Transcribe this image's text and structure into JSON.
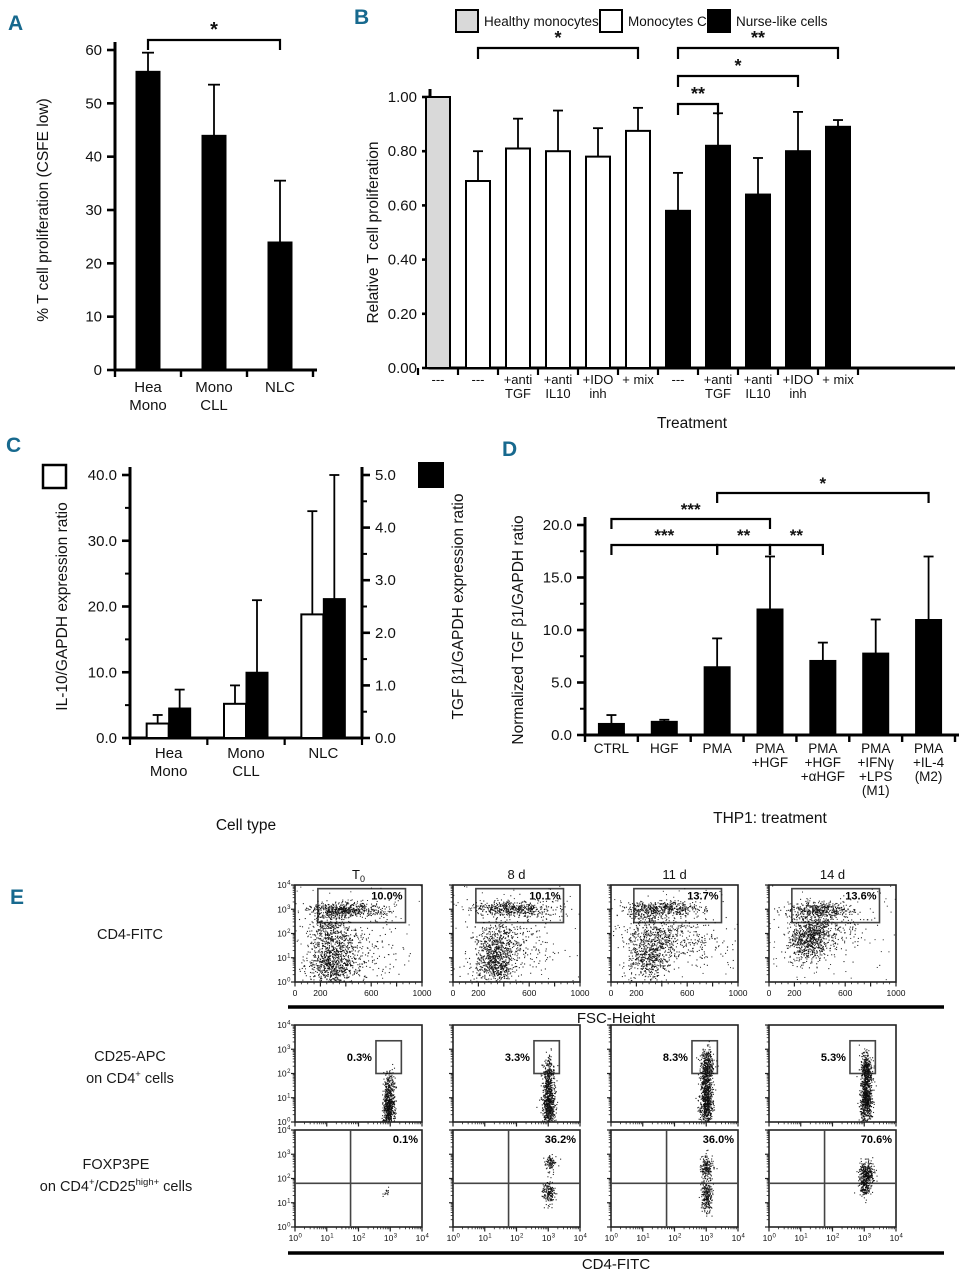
{
  "panels": {
    "A": "A",
    "B": "B",
    "C": "C",
    "D": "D",
    "E": "E"
  },
  "accent_color": "#17698e",
  "chart_data": [
    {
      "id": "A",
      "type": "bar",
      "ylabel": "% T cell proliferation (CSFE low)",
      "ylim": [
        0,
        60
      ],
      "ytick_step": 10,
      "ytick_decimals": 0,
      "categories": [
        "Hea\nMono",
        "Mono\nCLL",
        "NLC"
      ],
      "values": [
        56,
        44,
        24
      ],
      "errors_up": [
        3.5,
        9.5,
        11.5
      ],
      "bar_color": "#000000",
      "significance": [
        {
          "from": 0,
          "to": 2,
          "label": "*",
          "level": 1
        }
      ]
    },
    {
      "id": "B",
      "type": "bar",
      "ylabel": "Relative T cell proliferation",
      "xlabel": "Treatment",
      "ylim": [
        0,
        1.0
      ],
      "ytick_step": 0.2,
      "ytick_minor": 0.1,
      "ytick_decimals": 2,
      "legend": [
        {
          "label": "Healthy monocytes",
          "fill": "#d9d9d9"
        },
        {
          "label": "Monocytes CLL",
          "fill": "#ffffff"
        },
        {
          "label": "Nurse-like cells",
          "fill": "#000000"
        }
      ],
      "bars": [
        {
          "label": "---",
          "value": 1.0,
          "error": 0,
          "fill": "#d9d9d9"
        },
        {
          "label": "---",
          "value": 0.69,
          "error": 0.11,
          "fill": "#ffffff"
        },
        {
          "label": "+anti\nTGF",
          "value": 0.81,
          "error": 0.11,
          "fill": "#ffffff"
        },
        {
          "label": "+anti\nIL10",
          "value": 0.8,
          "error": 0.15,
          "fill": "#ffffff"
        },
        {
          "label": "+IDO\ninh",
          "value": 0.78,
          "error": 0.105,
          "fill": "#ffffff"
        },
        {
          "label": "+ mix",
          "value": 0.875,
          "error": 0.085,
          "fill": "#ffffff"
        },
        {
          "label": "---",
          "value": 0.58,
          "error": 0.14,
          "fill": "#000000"
        },
        {
          "label": "+anti\nTGF",
          "value": 0.82,
          "error": 0.12,
          "fill": "#000000"
        },
        {
          "label": "+anti\nIL10",
          "value": 0.64,
          "error": 0.135,
          "fill": "#000000"
        },
        {
          "label": "+IDO\ninh",
          "value": 0.8,
          "error": 0.145,
          "fill": "#000000"
        },
        {
          "label": "+ mix",
          "value": 0.89,
          "error": 0.025,
          "fill": "#000000"
        }
      ],
      "significance": [
        {
          "from": 1,
          "to": 5,
          "label": "*",
          "level": 3
        },
        {
          "from": 6,
          "to": 10,
          "label": "**",
          "level": 3
        },
        {
          "from": 6,
          "to": 9,
          "label": "*",
          "level": 2
        },
        {
          "from": 6,
          "to": 7,
          "label": "**",
          "level": 1
        }
      ]
    },
    {
      "id": "C",
      "type": "bar-dual-axis",
      "left_ylabel": "IL-10/GAPDH expression ratio",
      "right_ylabel": "TGF β1/GAPDH expression ratio",
      "xlabel": "Cell type",
      "left_ylim": [
        0,
        40
      ],
      "left_ytick_step": 10,
      "left_ytick_minor": 5,
      "left_decimals": 1,
      "right_ylim": [
        0,
        5
      ],
      "right_ytick_step": 1,
      "right_ytick_minor": 0.5,
      "right_decimals": 1,
      "categories": [
        "Hea\nMono",
        "Mono\nCLL",
        "NLC"
      ],
      "series": [
        {
          "name": "IL-10",
          "axis": "left",
          "fill": "#ffffff",
          "values": [
            2.2,
            5.2,
            18.8
          ],
          "errors_up": [
            1.3,
            2.8,
            15.7
          ]
        },
        {
          "name": "TGF β1",
          "axis": "right",
          "fill": "#000000",
          "values": [
            0.57,
            1.25,
            2.65
          ],
          "errors_up": [
            0.35,
            1.37,
            2.35
          ]
        }
      ]
    },
    {
      "id": "D",
      "type": "bar",
      "ylabel": "Normalized TGF β1/GAPDH ratio",
      "xlabel": "THP1: treatment",
      "ylim": [
        0,
        20
      ],
      "ytick_step": 5,
      "ytick_minor": 2.5,
      "ytick_decimals": 1,
      "categories": [
        "CTRL",
        "HGF",
        "PMA",
        "PMA\n+HGF",
        "PMA\n+HGF\n+αHGF",
        "PMA\n+IFNγ\n+LPS\n(M1)",
        "PMA\n+IL-4\n(M2)"
      ],
      "values": [
        1.1,
        1.3,
        6.5,
        12.0,
        7.1,
        7.8,
        11.0
      ],
      "errors_up": [
        0.8,
        0.15,
        2.7,
        5.0,
        1.7,
        3.2,
        6.0
      ],
      "bar_color": "#000000",
      "significance": [
        {
          "from": 0,
          "to": 2,
          "label": "***",
          "level": 1
        },
        {
          "from": 2,
          "to": 3,
          "label": "**",
          "level": 1
        },
        {
          "from": 3,
          "to": 4,
          "label": "**",
          "level": 1
        },
        {
          "from": 0,
          "to": 3,
          "label": "***",
          "level": 2
        },
        {
          "from": 2,
          "to": 6,
          "label": "*",
          "level": 3
        }
      ]
    },
    {
      "id": "E",
      "type": "scatter-flow",
      "columns": [
        [
          {
            "t": "T"
          },
          {
            "t": "0",
            "s": "sub"
          }
        ],
        [
          {
            "t": "8 d"
          }
        ],
        [
          {
            "t": "11 d"
          }
        ],
        [
          {
            "t": "14 d"
          }
        ]
      ],
      "rows": [
        {
          "label": [
            [
              {
                "t": "CD4-FITC"
              }
            ]
          ],
          "x": {
            "scale": "linear",
            "min": 0,
            "max": 1000,
            "labels": [
              0,
              200,
              600,
              1000
            ],
            "show_labels": true,
            "title": "FSC-Height"
          },
          "gate": {
            "type": "rect",
            "x": [
              180,
              870
            ],
            "ylog": [
              2.45,
              3.85
            ],
            "pct_pos": "inside-right"
          },
          "percents": [
            "10.0%",
            "10.1%",
            "13.7%",
            "13.6%"
          ],
          "clusters": [
            [
              [
                290,
                0.7,
                100,
                0.45,
                650
              ],
              [
                300,
                1.9,
                90,
                0.45,
                350
              ],
              [
                380,
                3.0,
                140,
                0.15,
                450
              ],
              [
                620,
                2.95,
                130,
                0.22,
                80
              ],
              [
                480,
                1.2,
                170,
                0.55,
                200
              ],
              [
                230,
                2.6,
                60,
                0.3,
                120
              ]
            ],
            [
              [
                330,
                0.75,
                80,
                0.45,
                600
              ],
              [
                345,
                1.8,
                100,
                0.5,
                300
              ],
              [
                430,
                3.05,
                150,
                0.15,
                430
              ],
              [
                660,
                2.9,
                110,
                0.25,
                80
              ],
              [
                520,
                1.4,
                160,
                0.5,
                150
              ]
            ],
            [
              [
                300,
                1.1,
                85,
                0.55,
                550
              ],
              [
                390,
                2.0,
                130,
                0.5,
                300
              ],
              [
                410,
                3.05,
                150,
                0.16,
                430
              ],
              [
                640,
                1.6,
                150,
                0.5,
                150
              ],
              [
                250,
                2.8,
                60,
                0.25,
                100
              ]
            ],
            [
              [
                300,
                1.7,
                75,
                0.45,
                500
              ],
              [
                340,
                2.2,
                90,
                0.4,
                300
              ],
              [
                390,
                3.0,
                130,
                0.17,
                380
              ],
              [
                520,
                2.1,
                140,
                0.5,
                170
              ]
            ]
          ]
        },
        {
          "label": [
            [
              {
                "t": "CD25-APC"
              }
            ],
            [
              {
                "t": "on CD4"
              },
              {
                "t": "+",
                "s": "sup"
              },
              {
                "t": " cells"
              }
            ]
          ],
          "x": {
            "scale": "log",
            "show_labels": false
          },
          "gate": {
            "type": "rect",
            "xlog": [
              2.55,
              3.35
            ],
            "ylog": [
              2.0,
              3.35
            ],
            "pct_pos": "left"
          },
          "percents": [
            "0.3%",
            "3.3%",
            "8.3%",
            "5.3%"
          ],
          "clusters": [
            [
              [
                2.95,
                0.6,
                0.09,
                0.45,
                550
              ],
              [
                2.95,
                1.5,
                0.09,
                0.3,
                120
              ],
              [
                3.0,
                2.05,
                0.08,
                0.1,
                8
              ]
            ],
            [
              [
                3.0,
                0.7,
                0.1,
                0.45,
                550
              ],
              [
                3.0,
                1.7,
                0.1,
                0.35,
                200
              ],
              [
                3.02,
                2.3,
                0.09,
                0.25,
                80
              ]
            ],
            [
              [
                3.0,
                0.8,
                0.1,
                0.5,
                600
              ],
              [
                3.0,
                1.9,
                0.1,
                0.4,
                250
              ],
              [
                3.03,
                2.5,
                0.1,
                0.3,
                200
              ]
            ],
            [
              [
                3.05,
                0.9,
                0.09,
                0.5,
                600
              ],
              [
                3.05,
                1.9,
                0.09,
                0.4,
                250
              ],
              [
                3.05,
                2.4,
                0.09,
                0.28,
                140
              ]
            ]
          ]
        },
        {
          "label": [
            [
              {
                "t": "FOXP3PE"
              }
            ],
            [
              {
                "t": "on CD4"
              },
              {
                "t": "+",
                "s": "sup"
              },
              {
                "t": "/CD25"
              },
              {
                "t": "high+",
                "s": "sup"
              },
              {
                "t": " cells"
              }
            ]
          ],
          "x": {
            "scale": "log",
            "show_labels": true,
            "title": "CD4-FITC"
          },
          "gate": {
            "type": "quadrant",
            "xlog": 1.75,
            "ylog": 1.8,
            "pct_pos": "top-right"
          },
          "percents": [
            "0.1%",
            "36.2%",
            "36.0%",
            "70.6%"
          ],
          "clusters": [
            [
              [
                2.85,
                1.4,
                0.07,
                0.1,
                14
              ]
            ],
            [
              [
                3.0,
                1.45,
                0.1,
                0.22,
                160
              ],
              [
                3.05,
                2.7,
                0.09,
                0.17,
                90
              ]
            ],
            [
              [
                3.0,
                1.35,
                0.09,
                0.4,
                260
              ],
              [
                3.0,
                2.5,
                0.1,
                0.25,
                160
              ]
            ],
            [
              [
                3.05,
                2.15,
                0.11,
                0.28,
                350
              ],
              [
                3.0,
                1.55,
                0.09,
                0.2,
                110
              ]
            ]
          ]
        }
      ]
    }
  ]
}
